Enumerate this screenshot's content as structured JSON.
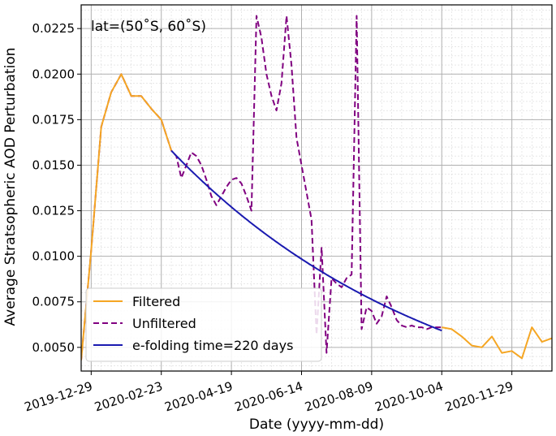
{
  "chart_data": {
    "type": "line",
    "annotation": "lat=(50˚S, 60˚S)",
    "xlabel": "Date (yyyy-mm-dd)",
    "ylabel": "Average Stratsopheric AOD Perturbation",
    "xlim": [
      "2019-12-21",
      "2020-12-31"
    ],
    "ylim": [
      0.0037,
      0.0238
    ],
    "x_ticks": [
      "2019-12-29",
      "2020-02-23",
      "2020-04-19",
      "2020-06-14",
      "2020-08-09",
      "2020-10-04",
      "2020-11-29"
    ],
    "y_ticks": [
      "0.0050",
      "0.0075",
      "0.0100",
      "0.0125",
      "0.0150",
      "0.0175",
      "0.0200",
      "0.0225"
    ],
    "grid": true,
    "legend_position": "lower-left",
    "series": [
      {
        "name": "Filtered",
        "color": "#f5a623",
        "style": "solid",
        "x": [
          "2019-12-21",
          "2019-12-29",
          "2020-01-06",
          "2020-01-14",
          "2020-01-22",
          "2020-01-30",
          "2020-02-07",
          "2020-02-15",
          "2020-02-23",
          "2020-03-02",
          "2020-10-04",
          "2020-10-12",
          "2020-10-20",
          "2020-10-28",
          "2020-11-05",
          "2020-11-13",
          "2020-11-21",
          "2020-11-29",
          "2020-12-07",
          "2020-12-15",
          "2020-12-23",
          "2020-12-31"
        ],
        "values": [
          0.0043,
          0.0103,
          0.0171,
          0.019,
          0.02,
          0.0188,
          0.0188,
          0.0181,
          0.0175,
          0.0158,
          0.0061,
          0.006,
          0.0056,
          0.0051,
          0.005,
          0.0056,
          0.0047,
          0.0048,
          0.0044,
          0.0061,
          0.0053,
          0.0055
        ]
      },
      {
        "name": "Unfiltered",
        "color": "#800080",
        "style": "dashed",
        "x": [
          "2019-12-21",
          "2019-12-29",
          "2020-01-06",
          "2020-01-14",
          "2020-01-22",
          "2020-01-30",
          "2020-02-07",
          "2020-02-15",
          "2020-02-23",
          "2020-03-02",
          "2020-03-06",
          "2020-03-10",
          "2020-03-14",
          "2020-03-18",
          "2020-03-22",
          "2020-03-26",
          "2020-03-30",
          "2020-04-03",
          "2020-04-07",
          "2020-04-11",
          "2020-04-15",
          "2020-04-19",
          "2020-04-23",
          "2020-04-27",
          "2020-05-01",
          "2020-05-05",
          "2020-05-09",
          "2020-05-13",
          "2020-05-17",
          "2020-05-21",
          "2020-05-25",
          "2020-05-29",
          "2020-06-02",
          "2020-06-06",
          "2020-06-10",
          "2020-06-14",
          "2020-06-18",
          "2020-06-22",
          "2020-06-26",
          "2020-06-30",
          "2020-07-04",
          "2020-07-08",
          "2020-07-12",
          "2020-07-16",
          "2020-07-20",
          "2020-07-24",
          "2020-07-28",
          "2020-08-01",
          "2020-08-05",
          "2020-08-09",
          "2020-08-13",
          "2020-08-17",
          "2020-08-21",
          "2020-08-25",
          "2020-08-29",
          "2020-09-02",
          "2020-09-06",
          "2020-09-10",
          "2020-09-14",
          "2020-09-18",
          "2020-09-22",
          "2020-09-26",
          "2020-09-30",
          "2020-10-04"
        ],
        "values": [
          0.0043,
          0.0103,
          0.0171,
          0.019,
          0.02,
          0.0188,
          0.0188,
          0.0181,
          0.0175,
          0.0158,
          0.0155,
          0.0143,
          0.015,
          0.0157,
          0.0155,
          0.015,
          0.0142,
          0.0133,
          0.0128,
          0.0133,
          0.0138,
          0.0142,
          0.0143,
          0.014,
          0.0133,
          0.0125,
          0.0232,
          0.022,
          0.02,
          0.0188,
          0.018,
          0.0195,
          0.0232,
          0.0205,
          0.0165,
          0.015,
          0.0135,
          0.012,
          0.0057,
          0.0105,
          0.0047,
          0.0088,
          0.0085,
          0.0083,
          0.0088,
          0.009,
          0.0232,
          0.006,
          0.0072,
          0.007,
          0.0063,
          0.0067,
          0.0078,
          0.0072,
          0.0065,
          0.0062,
          0.0061,
          0.0062,
          0.0061,
          0.0061,
          0.006,
          0.0061,
          0.0061,
          0.0061
        ]
      },
      {
        "name": "e-folding time=220 days",
        "color": "#1a1ab0",
        "style": "solid",
        "fit": {
          "t0": "2020-03-02",
          "y0": 0.0158,
          "tau_days": 220,
          "t_end": "2020-10-04"
        }
      }
    ]
  }
}
